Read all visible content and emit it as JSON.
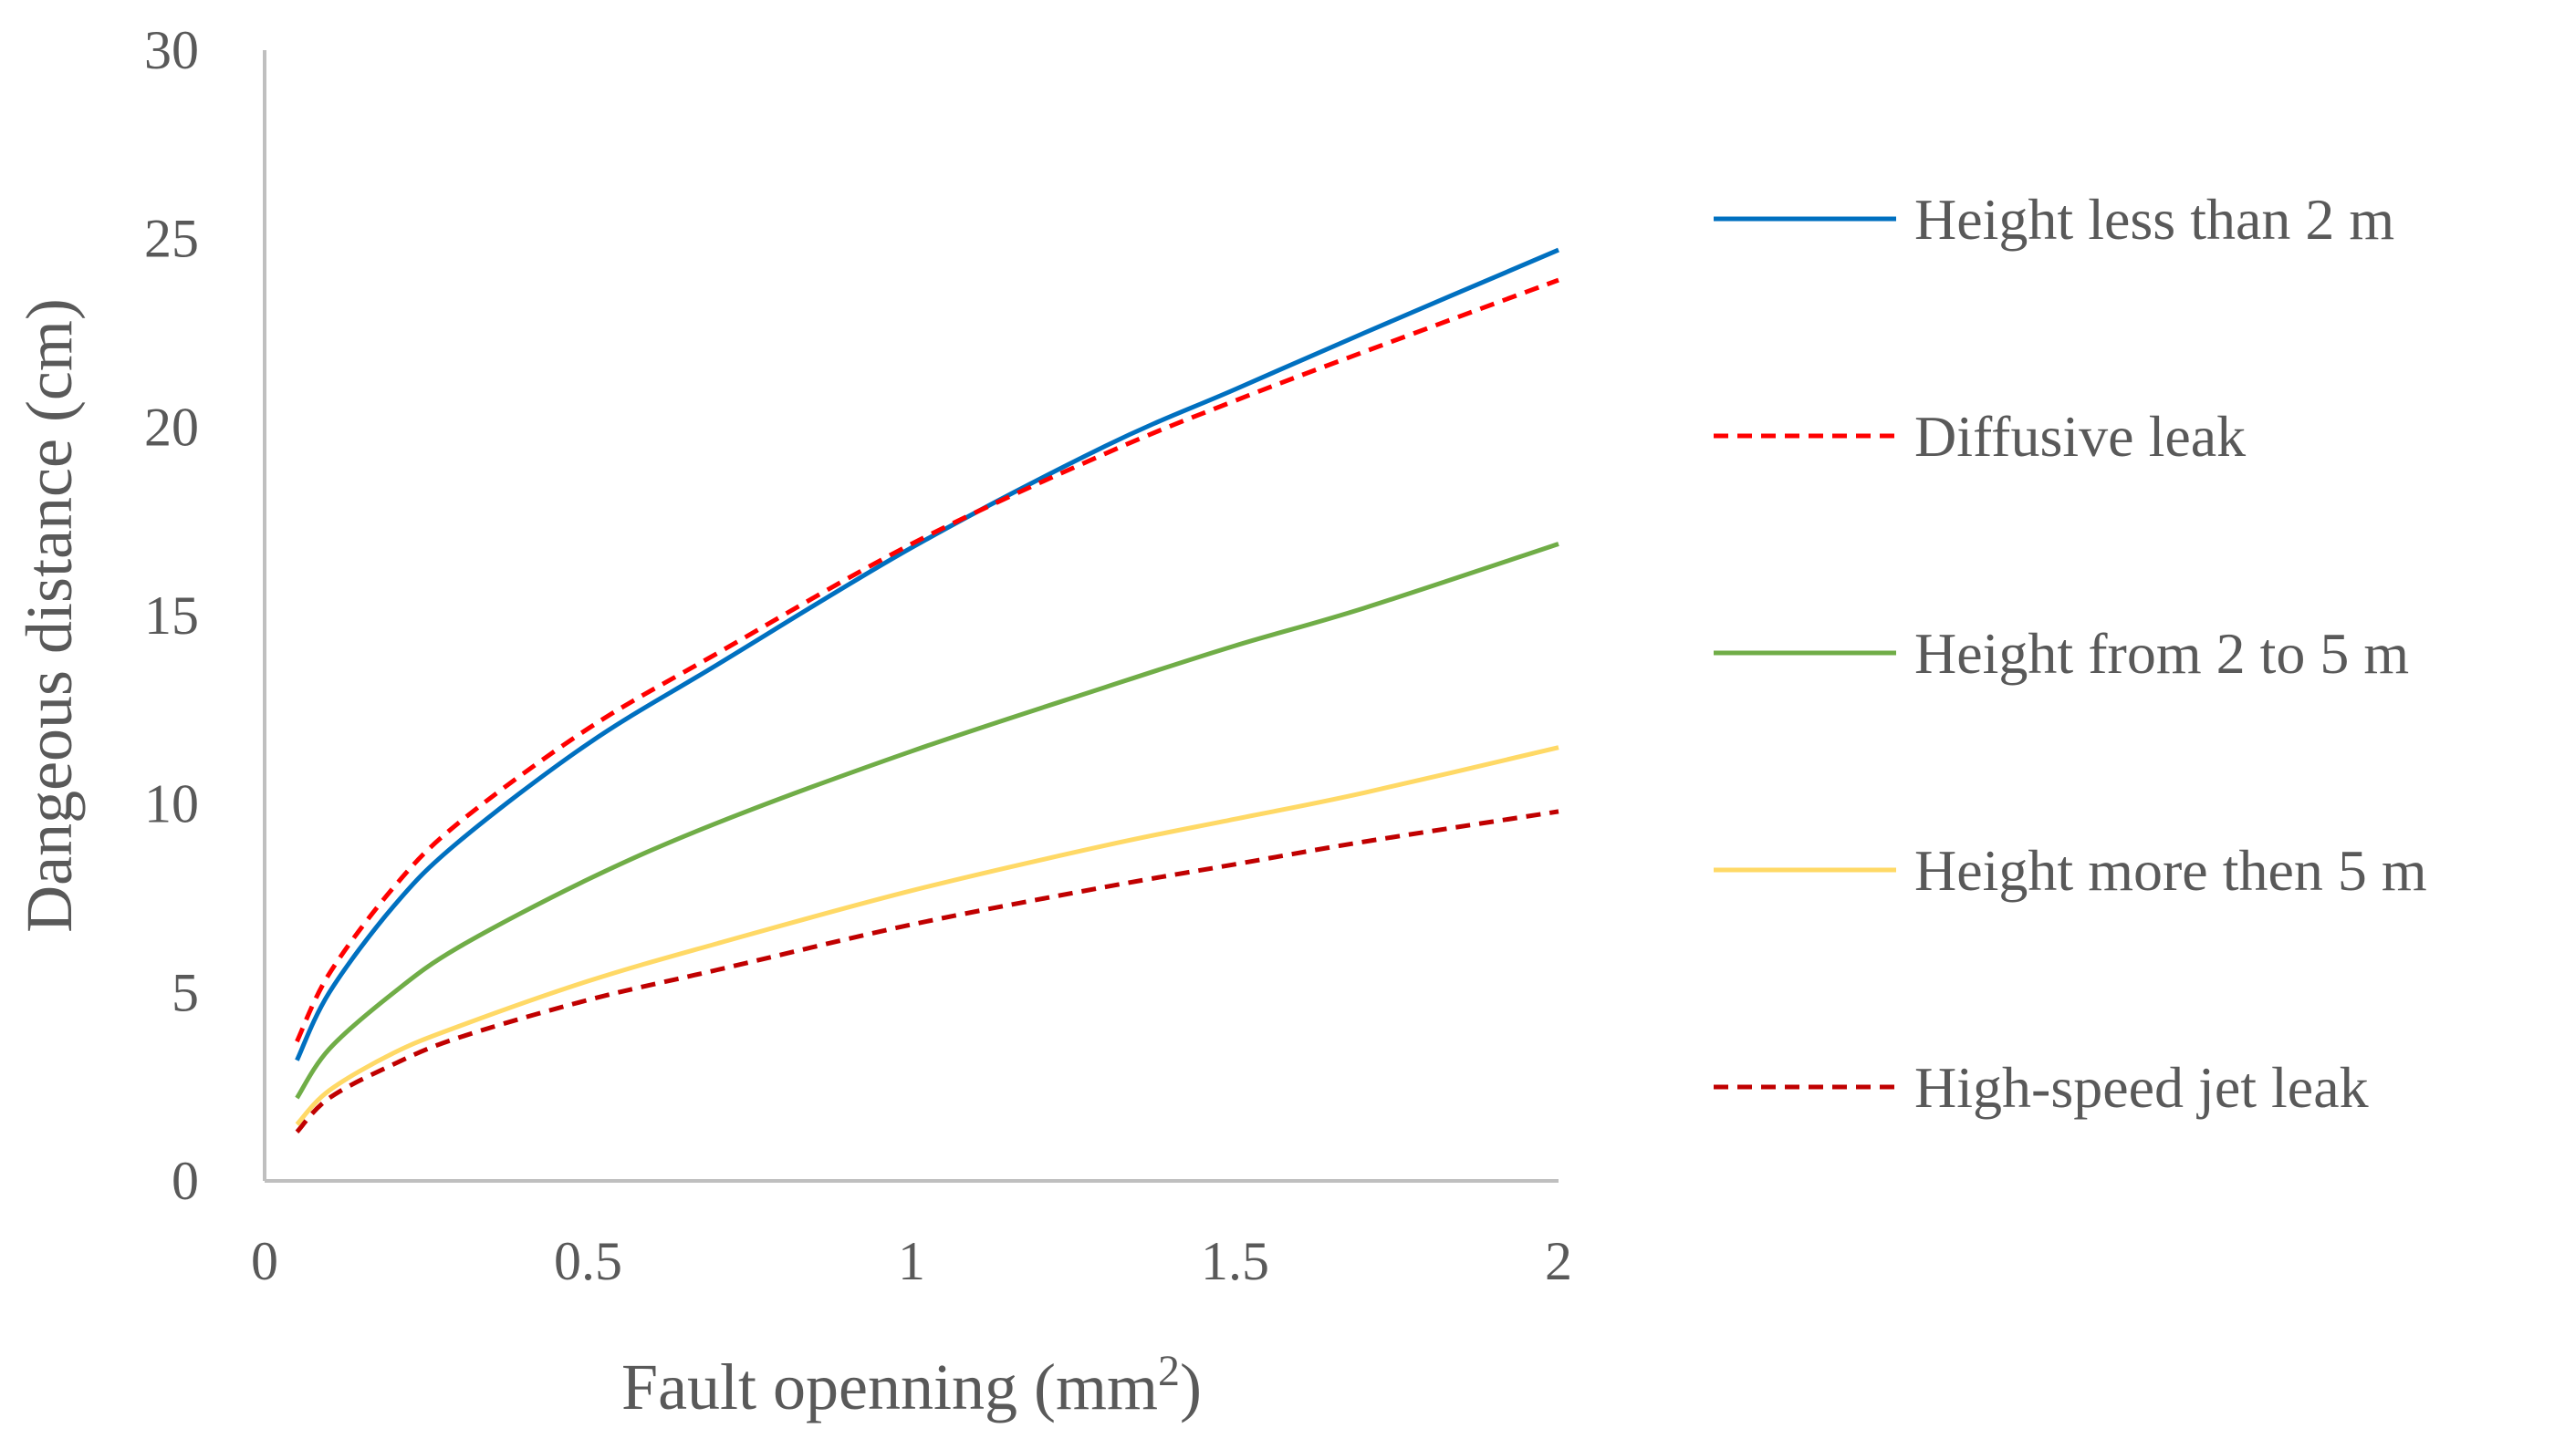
{
  "chart_data": {
    "type": "line",
    "title": "",
    "xlabel": "Fault openning (mm",
    "xlabel_superscript": "2",
    "xlabel_suffix": ")",
    "ylabel": "Dangeous distance (cm)",
    "xlim": [
      0,
      2
    ],
    "ylim": [
      0,
      30
    ],
    "x_ticks": [
      "0",
      "0.5",
      "1",
      "1.5",
      "2"
    ],
    "y_ticks": [
      "0",
      "5",
      "10",
      "15",
      "20",
      "25",
      "30"
    ],
    "grid": false,
    "legend_position": "right",
    "x": [
      0.05,
      0.1,
      0.2,
      0.3,
      0.5,
      0.7,
      1.0,
      1.3,
      1.5,
      1.7,
      2.0
    ],
    "series": [
      {
        "name": "Height less than 2 m",
        "color": "#0070C0",
        "dash": "solid",
        "values": [
          3.2,
          5.0,
          7.3,
          9.0,
          11.6,
          13.7,
          16.8,
          19.5,
          21.0,
          22.5,
          24.7
        ]
      },
      {
        "name": "Diffusive leak",
        "color": "#FF0000",
        "dash": "dashed",
        "values": [
          3.7,
          5.5,
          7.8,
          9.5,
          12.0,
          14.0,
          16.9,
          19.3,
          20.7,
          22.0,
          23.9
        ]
      },
      {
        "name": "Height from 2 to 5 m",
        "color": "#70AD47",
        "dash": "solid",
        "values": [
          2.2,
          3.5,
          5.0,
          6.2,
          8.0,
          9.5,
          11.4,
          13.1,
          14.2,
          15.2,
          16.9
        ]
      },
      {
        "name": "Height more then 5 m",
        "color": "#FFD966",
        "dash": "solid",
        "values": [
          1.5,
          2.4,
          3.4,
          4.1,
          5.3,
          6.3,
          7.7,
          8.9,
          9.6,
          10.3,
          11.5
        ]
      },
      {
        "name": "High-speed jet leak",
        "color": "#C00000",
        "dash": "dashed",
        "values": [
          1.3,
          2.2,
          3.1,
          3.8,
          4.8,
          5.6,
          6.8,
          7.8,
          8.4,
          9.0,
          9.8
        ]
      }
    ]
  }
}
